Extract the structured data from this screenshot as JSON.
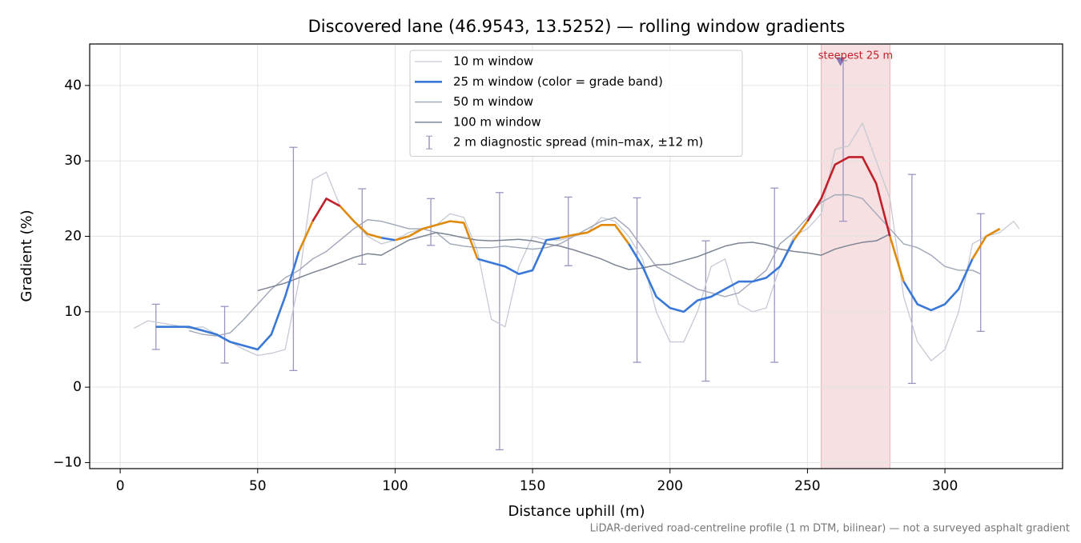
{
  "chart_data": {
    "type": "line",
    "title": "Discovered lane (46.9543, 13.5252) — rolling window gradients",
    "xlabel": "Distance uphill (m)",
    "ylabel": "Gradient (%)",
    "xlim": [
      -11.1,
      342.8
    ],
    "ylim": [
      -10.8,
      45.5
    ],
    "xticks": [
      0,
      50,
      100,
      150,
      200,
      250,
      300
    ],
    "yticks": [
      {
        "value": -10,
        "label": "−10"
      },
      0,
      10,
      20,
      30,
      40
    ],
    "grid": true,
    "legend": "upper center",
    "series": [
      {
        "name": "10 m window",
        "color": "#c5cad3",
        "width": 1.3,
        "x": [
          5,
          10,
          15,
          20,
          25,
          30,
          35,
          40,
          45,
          50,
          55,
          60,
          65,
          70,
          75,
          80,
          85,
          90,
          95,
          100,
          105,
          110,
          115,
          120,
          125,
          130,
          135,
          140,
          145,
          150,
          155,
          160,
          165,
          170,
          175,
          180,
          185,
          190,
          195,
          200,
          205,
          210,
          215,
          220,
          225,
          230,
          235,
          240,
          245,
          250,
          255,
          260,
          265,
          270,
          275,
          280,
          285,
          290,
          295,
          300,
          305,
          310,
          315,
          320,
          325,
          327
        ],
        "values": [
          7.8,
          8.8,
          8.5,
          8.2,
          7.8,
          8.0,
          7.0,
          6.0,
          5.0,
          4.2,
          4.5,
          5.0,
          14,
          27.5,
          28.5,
          24,
          22,
          20,
          19,
          19.5,
          20.5,
          21,
          21.5,
          23,
          22.5,
          18,
          9,
          8,
          16,
          20,
          19.5,
          19.5,
          20,
          20.5,
          22.5,
          22,
          20,
          17,
          10,
          6,
          6,
          10,
          16,
          17,
          11,
          10,
          10.5,
          16,
          20,
          21,
          23,
          31.5,
          32,
          35,
          30,
          25,
          12,
          6,
          3.5,
          5,
          10,
          19,
          20,
          20.5,
          22,
          21
        ]
      },
      {
        "name": "25 m window (color = grade band)",
        "color": "#3a78d8",
        "width": 2.6,
        "x": [
          13,
          15,
          20,
          25,
          30,
          35,
          40,
          45,
          50,
          55,
          60,
          65,
          70,
          75,
          80,
          85,
          90,
          95,
          100,
          105,
          110,
          115,
          120,
          125,
          130,
          135,
          140,
          145,
          150,
          155,
          160,
          165,
          170,
          175,
          180,
          185,
          190,
          195,
          200,
          205,
          210,
          215,
          220,
          225,
          230,
          235,
          240,
          245,
          250,
          255,
          260,
          265,
          270,
          275,
          280,
          285,
          290,
          295,
          300,
          305,
          310,
          315,
          320
        ],
        "values": [
          8,
          8,
          8,
          8,
          7.5,
          7,
          6,
          5.5,
          5,
          7,
          12,
          18,
          22,
          25,
          24,
          22,
          20.3,
          19.8,
          19.5,
          20,
          21,
          21.5,
          22,
          21.8,
          17,
          16.5,
          16,
          15,
          15.5,
          19.5,
          19.8,
          20.2,
          20.5,
          21.5,
          21.5,
          19,
          16,
          12,
          10.5,
          10,
          11.5,
          12,
          13,
          14,
          14,
          14.5,
          16,
          19.5,
          22,
          25,
          29.5,
          30.5,
          30.5,
          27,
          20,
          14,
          11,
          10.2,
          11,
          13,
          17,
          20,
          21
        ]
      },
      {
        "name": "50 m window",
        "color": "#a0a7b8",
        "width": 1.4,
        "x": [
          25,
          30,
          35,
          40,
          45,
          50,
          55,
          60,
          65,
          70,
          75,
          80,
          85,
          90,
          95,
          100,
          105,
          110,
          115,
          120,
          125,
          130,
          135,
          140,
          145,
          150,
          155,
          160,
          165,
          170,
          175,
          180,
          185,
          190,
          195,
          200,
          205,
          210,
          215,
          220,
          225,
          230,
          235,
          240,
          245,
          250,
          255,
          260,
          265,
          270,
          275,
          280,
          285,
          290,
          295,
          300,
          305,
          310,
          313
        ],
        "values": [
          7.5,
          7,
          6.8,
          7.2,
          9,
          11,
          13,
          14.5,
          15.5,
          17,
          18,
          19.5,
          21,
          22.2,
          22,
          21.5,
          21,
          21,
          20.5,
          19,
          18.7,
          18.5,
          18.5,
          18.7,
          18.5,
          18.3,
          18.5,
          19,
          20,
          21,
          22,
          22.5,
          21,
          18.5,
          16,
          15,
          14,
          13,
          12.5,
          12,
          12.5,
          14,
          15.5,
          19,
          20.5,
          22.5,
          24.5,
          25.5,
          25.5,
          25,
          23,
          21,
          19,
          18.5,
          17.5,
          16,
          15.5,
          15.5,
          15
        ]
      },
      {
        "name": "100 m window",
        "color": "#7d8494",
        "width": 1.5,
        "x": [
          50,
          55,
          60,
          65,
          70,
          75,
          80,
          85,
          90,
          95,
          100,
          105,
          110,
          115,
          120,
          125,
          130,
          135,
          140,
          145,
          150,
          155,
          160,
          165,
          170,
          175,
          180,
          185,
          190,
          195,
          200,
          205,
          210,
          215,
          220,
          225,
          230,
          235,
          240,
          245,
          250,
          255,
          260,
          265,
          270,
          275,
          280
        ],
        "values": [
          12.8,
          13.3,
          13.8,
          14.5,
          15.2,
          15.8,
          16.5,
          17.2,
          17.7,
          17.5,
          18.5,
          19.5,
          20,
          20.5,
          20.2,
          19.8,
          19.5,
          19.4,
          19.5,
          19.6,
          19.4,
          19,
          18.7,
          18.2,
          17.6,
          17,
          16.2,
          15.6,
          15.8,
          16.2,
          16.3,
          16.8,
          17.3,
          18,
          18.7,
          19.1,
          19.2,
          18.9,
          18.3,
          18,
          17.8,
          17.5,
          18.3,
          18.8,
          19.2,
          19.4,
          20.3
        ]
      }
    ],
    "segment_colors": [
      {
        "from": 20,
        "color": "#e08a0b"
      },
      {
        "from": 25,
        "color": "#c0202a"
      }
    ],
    "errorbars": {
      "name": "2 m diagnostic spread (min–max, ±12 m)",
      "color": "#9d95c0",
      "x": [
        13,
        38,
        63,
        88,
        113,
        138,
        163,
        188,
        213,
        238,
        263,
        288,
        313
      ],
      "min": [
        5,
        3.2,
        2.2,
        16.3,
        18.8,
        -8.3,
        16.1,
        3.3,
        0.8,
        3.3,
        22,
        0.5,
        7.4
      ],
      "max": [
        11,
        10.7,
        31.8,
        26.3,
        25,
        25.8,
        25.2,
        25.1,
        19.4,
        26.4,
        43.3,
        28.2,
        23
      ]
    },
    "highlight": {
      "xlim": [
        255,
        280
      ],
      "label": "steepest 25 m",
      "color": "#c0202a",
      "x": 262,
      "y": 43.2
    },
    "footnote": "LiDAR-derived road-centreline profile (1 m DTM, bilinear) — not a surveyed asphalt gradient"
  }
}
